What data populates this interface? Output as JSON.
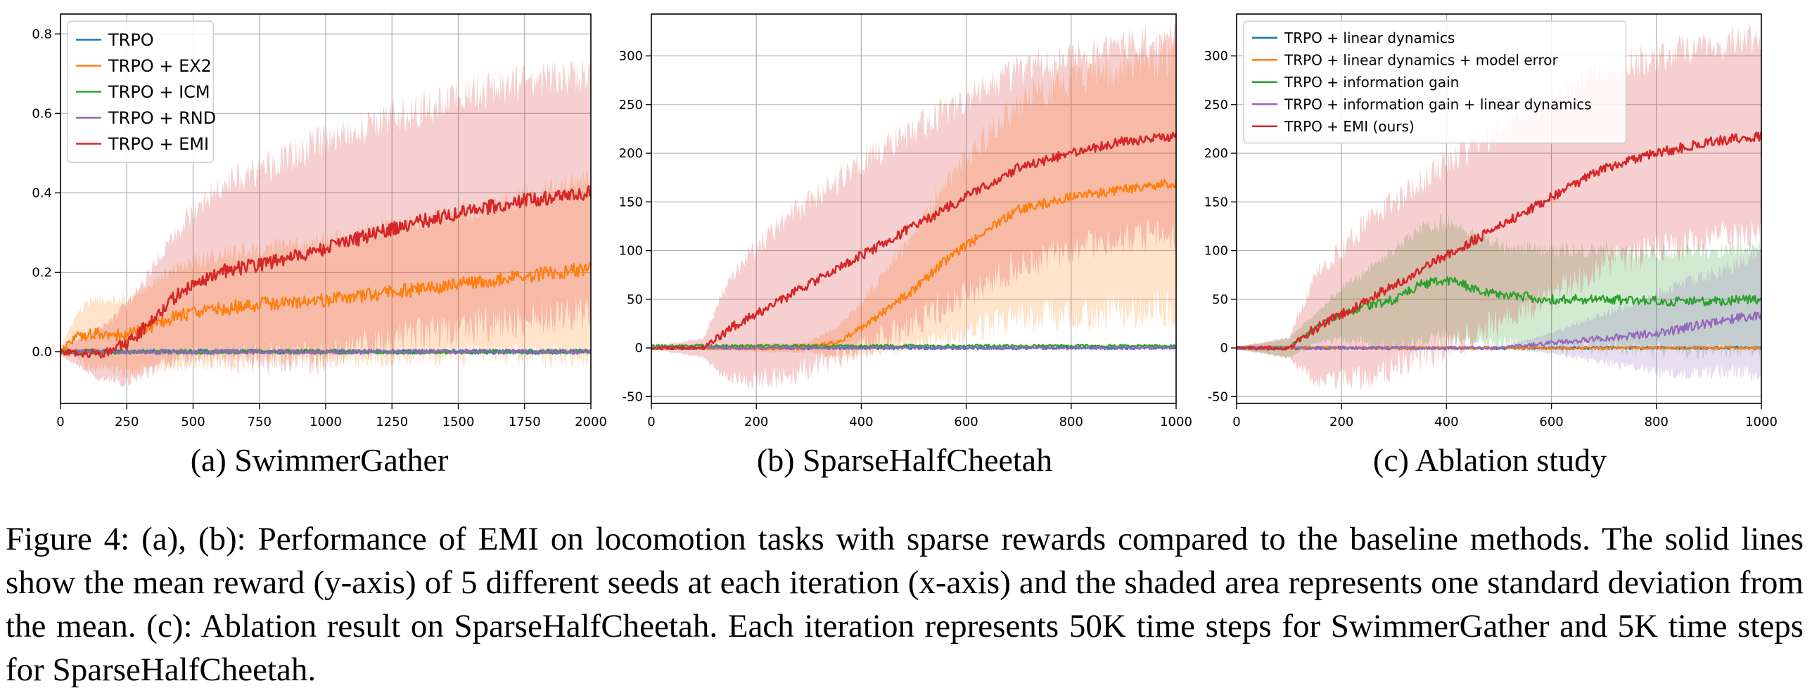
{
  "figure": {
    "caption": "Figure 4: (a), (b): Performance of EMI on locomotion tasks with sparse rewards compared to the baseline methods. The solid lines show the mean reward (y-axis) of 5 different seeds at each iteration (x-axis) and the shaded area represents one standard deviation from the mean. (c): Ablation result on SparseHalfCheetah. Each iteration represents 50K time steps for SwimmerGather and 5K time steps for SparseHalfCheetah."
  },
  "colors": {
    "blue": "#1f77b4",
    "orange": "#ff7f0e",
    "green": "#2ca02c",
    "purple": "#9467bd",
    "red": "#d62728"
  },
  "chart_data": [
    {
      "type": "line",
      "subcaption": "(a) SwimmerGather",
      "xlabel": "",
      "ylabel": "",
      "xlim": [
        0,
        2000
      ],
      "ylim": [
        -0.13,
        0.85
      ],
      "xticks": [
        0,
        250,
        500,
        750,
        1000,
        1250,
        1500,
        1750,
        2000
      ],
      "yticks": [
        0.0,
        0.2,
        0.4,
        0.6,
        0.8
      ],
      "ytick_decimals": 1,
      "grid": true,
      "legend": "upper-left",
      "noise": 0.018,
      "series": [
        {
          "name": "TRPO",
          "color": "blue",
          "mean": [
            [
              0,
              0
            ],
            [
              2000,
              0
            ]
          ],
          "std": [
            [
              0,
              0.003
            ],
            [
              2000,
              0.003
            ]
          ]
        },
        {
          "name": "TRPO + EX2",
          "color": "orange",
          "mean": [
            [
              0,
              0
            ],
            [
              60,
              0.04
            ],
            [
              150,
              0.045
            ],
            [
              250,
              0.04
            ],
            [
              400,
              0.08
            ],
            [
              500,
              0.1
            ],
            [
              750,
              0.12
            ],
            [
              1000,
              0.13
            ],
            [
              1250,
              0.15
            ],
            [
              1500,
              0.17
            ],
            [
              1750,
              0.19
            ],
            [
              2000,
              0.21
            ]
          ],
          "std": [
            [
              0,
              0.01
            ],
            [
              100,
              0.08
            ],
            [
              300,
              0.1
            ],
            [
              500,
              0.13
            ],
            [
              1000,
              0.15
            ],
            [
              1500,
              0.18
            ],
            [
              2000,
              0.22
            ]
          ]
        },
        {
          "name": "TRPO + ICM",
          "color": "green",
          "mean": [
            [
              0,
              0
            ],
            [
              2000,
              0
            ]
          ],
          "std": [
            [
              0,
              0.005
            ],
            [
              2000,
              0.005
            ]
          ]
        },
        {
          "name": "TRPO + RND",
          "color": "purple",
          "mean": [
            [
              0,
              0
            ],
            [
              2000,
              0
            ]
          ],
          "std": [
            [
              0,
              0.004
            ],
            [
              2000,
              0.004
            ]
          ]
        },
        {
          "name": "TRPO + EMI",
          "color": "red",
          "mean": [
            [
              0,
              0
            ],
            [
              150,
              -0.005
            ],
            [
              250,
              0.02
            ],
            [
              300,
              0.05
            ],
            [
              400,
              0.12
            ],
            [
              500,
              0.17
            ],
            [
              600,
              0.2
            ],
            [
              750,
              0.22
            ],
            [
              1000,
              0.26
            ],
            [
              1250,
              0.31
            ],
            [
              1500,
              0.35
            ],
            [
              1750,
              0.38
            ],
            [
              2000,
              0.4
            ]
          ],
          "std": [
            [
              0,
              0.01
            ],
            [
              200,
              0.08
            ],
            [
              400,
              0.15
            ],
            [
              600,
              0.22
            ],
            [
              1000,
              0.27
            ],
            [
              1500,
              0.29
            ],
            [
              2000,
              0.3
            ]
          ]
        }
      ]
    },
    {
      "type": "line",
      "subcaption": "(b) SparseHalfCheetah",
      "xlabel": "",
      "ylabel": "",
      "xlim": [
        0,
        1000
      ],
      "ylim": [
        -57,
        343
      ],
      "xticks": [
        0,
        200,
        400,
        600,
        800,
        1000
      ],
      "yticks": [
        -50,
        0,
        50,
        100,
        150,
        200,
        250,
        300
      ],
      "ytick_decimals": 0,
      "grid": true,
      "legend": "none",
      "noise": 5,
      "series": [
        {
          "name": "TRPO",
          "color": "blue",
          "mean": [
            [
              0,
              0
            ],
            [
              1000,
              0
            ]
          ],
          "std": [
            [
              0,
              0.5
            ],
            [
              1000,
              0.5
            ]
          ]
        },
        {
          "name": "TRPO + EX2",
          "color": "orange",
          "mean": [
            [
              0,
              0
            ],
            [
              280,
              0
            ],
            [
              350,
              5
            ],
            [
              400,
              20
            ],
            [
              450,
              40
            ],
            [
              500,
              60
            ],
            [
              550,
              85
            ],
            [
              600,
              105
            ],
            [
              650,
              125
            ],
            [
              700,
              142
            ],
            [
              800,
              155
            ],
            [
              900,
              163
            ],
            [
              1000,
              170
            ]
          ],
          "std": [
            [
              0,
              1
            ],
            [
              300,
              5
            ],
            [
              400,
              25
            ],
            [
              500,
              60
            ],
            [
              600,
              90
            ],
            [
              700,
              110
            ],
            [
              800,
              120
            ],
            [
              1000,
              130
            ]
          ]
        },
        {
          "name": "TRPO + ICM",
          "color": "green",
          "mean": [
            [
              0,
              2
            ],
            [
              1000,
              2
            ]
          ],
          "std": [
            [
              0,
              1
            ],
            [
              1000,
              1
            ]
          ]
        },
        {
          "name": "TRPO + RND",
          "color": "purple",
          "mean": [
            [
              0,
              0
            ],
            [
              1000,
              0
            ]
          ],
          "std": [
            [
              0,
              0.5
            ],
            [
              1000,
              0.5
            ]
          ]
        },
        {
          "name": "TRPO + EMI",
          "color": "red",
          "mean": [
            [
              0,
              0
            ],
            [
              100,
              0
            ],
            [
              150,
              20
            ],
            [
              200,
              35
            ],
            [
              250,
              50
            ],
            [
              300,
              65
            ],
            [
              400,
              95
            ],
            [
              450,
              110
            ],
            [
              500,
              125
            ],
            [
              600,
              155
            ],
            [
              650,
              170
            ],
            [
              700,
              185
            ],
            [
              800,
              200
            ],
            [
              900,
              212
            ],
            [
              1000,
              218
            ]
          ],
          "std": [
            [
              0,
              1
            ],
            [
              100,
              10
            ],
            [
              150,
              55
            ],
            [
              250,
              80
            ],
            [
              400,
              95
            ],
            [
              600,
              100
            ],
            [
              800,
              100
            ],
            [
              1000,
              100
            ]
          ]
        }
      ]
    },
    {
      "type": "line",
      "subcaption": "(c) Ablation study",
      "xlabel": "",
      "ylabel": "",
      "xlim": [
        0,
        1000
      ],
      "ylim": [
        -57,
        343
      ],
      "xticks": [
        0,
        200,
        400,
        600,
        800,
        1000
      ],
      "yticks": [
        -50,
        0,
        50,
        100,
        150,
        200,
        250,
        300
      ],
      "ytick_decimals": 0,
      "grid": true,
      "legend": "upper-left",
      "noise": 5,
      "series": [
        {
          "name": "TRPO + linear dynamics",
          "color": "blue",
          "mean": [
            [
              0,
              0
            ],
            [
              1000,
              0
            ]
          ],
          "std": [
            [
              0,
              0.5
            ],
            [
              1000,
              0.5
            ]
          ]
        },
        {
          "name": "TRPO + linear dynamics + model error",
          "color": "orange",
          "mean": [
            [
              0,
              0
            ],
            [
              1000,
              0
            ]
          ],
          "std": [
            [
              0,
              0.5
            ],
            [
              1000,
              0.5
            ]
          ]
        },
        {
          "name": "TRPO + information gain",
          "color": "green",
          "mean": [
            [
              0,
              0
            ],
            [
              100,
              0
            ],
            [
              150,
              20
            ],
            [
              200,
              35
            ],
            [
              300,
              50
            ],
            [
              350,
              65
            ],
            [
              400,
              70
            ],
            [
              450,
              62
            ],
            [
              500,
              55
            ],
            [
              600,
              50
            ],
            [
              700,
              50
            ],
            [
              800,
              48
            ],
            [
              900,
              48
            ],
            [
              1000,
              50
            ]
          ],
          "std": [
            [
              0,
              1
            ],
            [
              150,
              15
            ],
            [
              300,
              50
            ],
            [
              400,
              60
            ],
            [
              500,
              50
            ],
            [
              600,
              50
            ],
            [
              800,
              50
            ],
            [
              1000,
              55
            ]
          ]
        },
        {
          "name": "TRPO + information gain + linear dynamics",
          "color": "purple",
          "mean": [
            [
              0,
              0
            ],
            [
              500,
              0
            ],
            [
              600,
              5
            ],
            [
              700,
              10
            ],
            [
              800,
              15
            ],
            [
              900,
              25
            ],
            [
              1000,
              35
            ]
          ],
          "std": [
            [
              0,
              0.5
            ],
            [
              500,
              1
            ],
            [
              600,
              10
            ],
            [
              700,
              25
            ],
            [
              800,
              40
            ],
            [
              1000,
              60
            ]
          ]
        },
        {
          "name": "TRPO + EMI (ours)",
          "color": "red",
          "mean": [
            [
              0,
              0
            ],
            [
              100,
              0
            ],
            [
              150,
              20
            ],
            [
              200,
              35
            ],
            [
              250,
              50
            ],
            [
              300,
              65
            ],
            [
              400,
              95
            ],
            [
              450,
              110
            ],
            [
              500,
              125
            ],
            [
              600,
              155
            ],
            [
              650,
              170
            ],
            [
              700,
              185
            ],
            [
              800,
              200
            ],
            [
              900,
              212
            ],
            [
              1000,
              218
            ]
          ],
          "std": [
            [
              0,
              1
            ],
            [
              100,
              10
            ],
            [
              150,
              55
            ],
            [
              250,
              80
            ],
            [
              400,
              95
            ],
            [
              600,
              100
            ],
            [
              800,
              100
            ],
            [
              1000,
              100
            ]
          ]
        }
      ]
    }
  ]
}
